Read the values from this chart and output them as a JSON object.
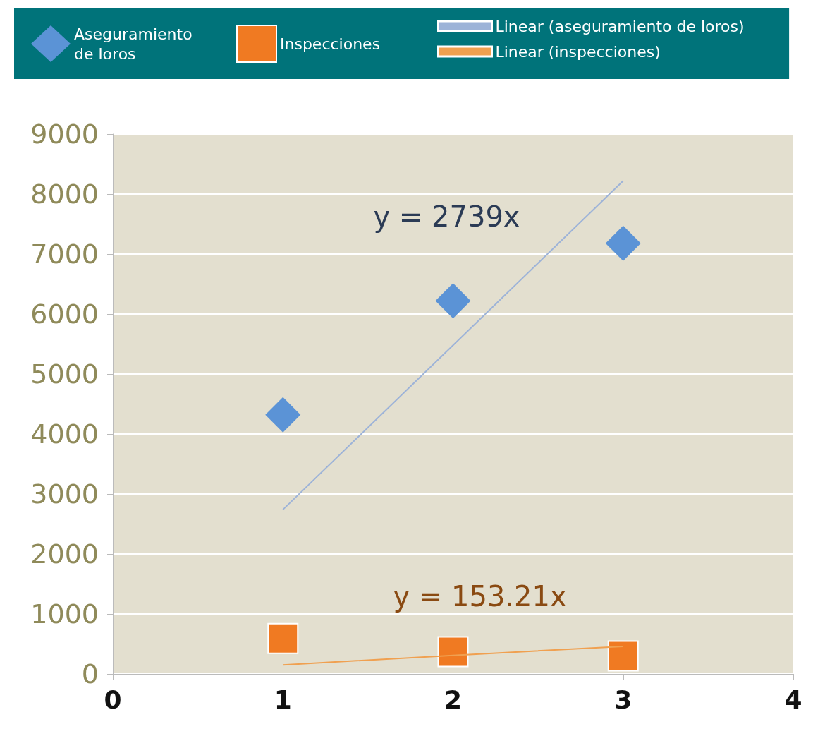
{
  "chart_data": {
    "type": "scatter",
    "xlim": [
      0,
      4
    ],
    "xticks": [
      0,
      1,
      2,
      3,
      4
    ],
    "ylim": [
      0,
      9000
    ],
    "yticks": [
      0,
      1000,
      2000,
      3000,
      4000,
      5000,
      6000,
      7000,
      8000,
      9000
    ],
    "grid": "y",
    "legend": "top",
    "series": [
      {
        "name": "Aseguramiento de loros",
        "marker": "diamond",
        "color": "#5b93d6",
        "x": [
          1,
          2,
          3
        ],
        "values": [
          4320,
          6220,
          7180
        ]
      },
      {
        "name": "Inspecciones",
        "marker": "square",
        "color": "#f07a22",
        "x": [
          1,
          2,
          3
        ],
        "values": [
          590,
          370,
          300
        ]
      },
      {
        "name": "Linear (aseguramiento de loros)",
        "type": "line",
        "marker": "none",
        "color": "#9db3d8",
        "x": [
          1,
          2,
          3
        ],
        "values": [
          2740,
          5480,
          8220
        ]
      },
      {
        "name": "Linear (inspecciones)",
        "type": "line",
        "marker": "none",
        "color": "#f0a050",
        "x": [
          1,
          2,
          3
        ],
        "values": [
          150,
          310,
          460
        ]
      }
    ],
    "annotations": [
      "y = 2739x",
      "y = 153.21x"
    ]
  }
}
